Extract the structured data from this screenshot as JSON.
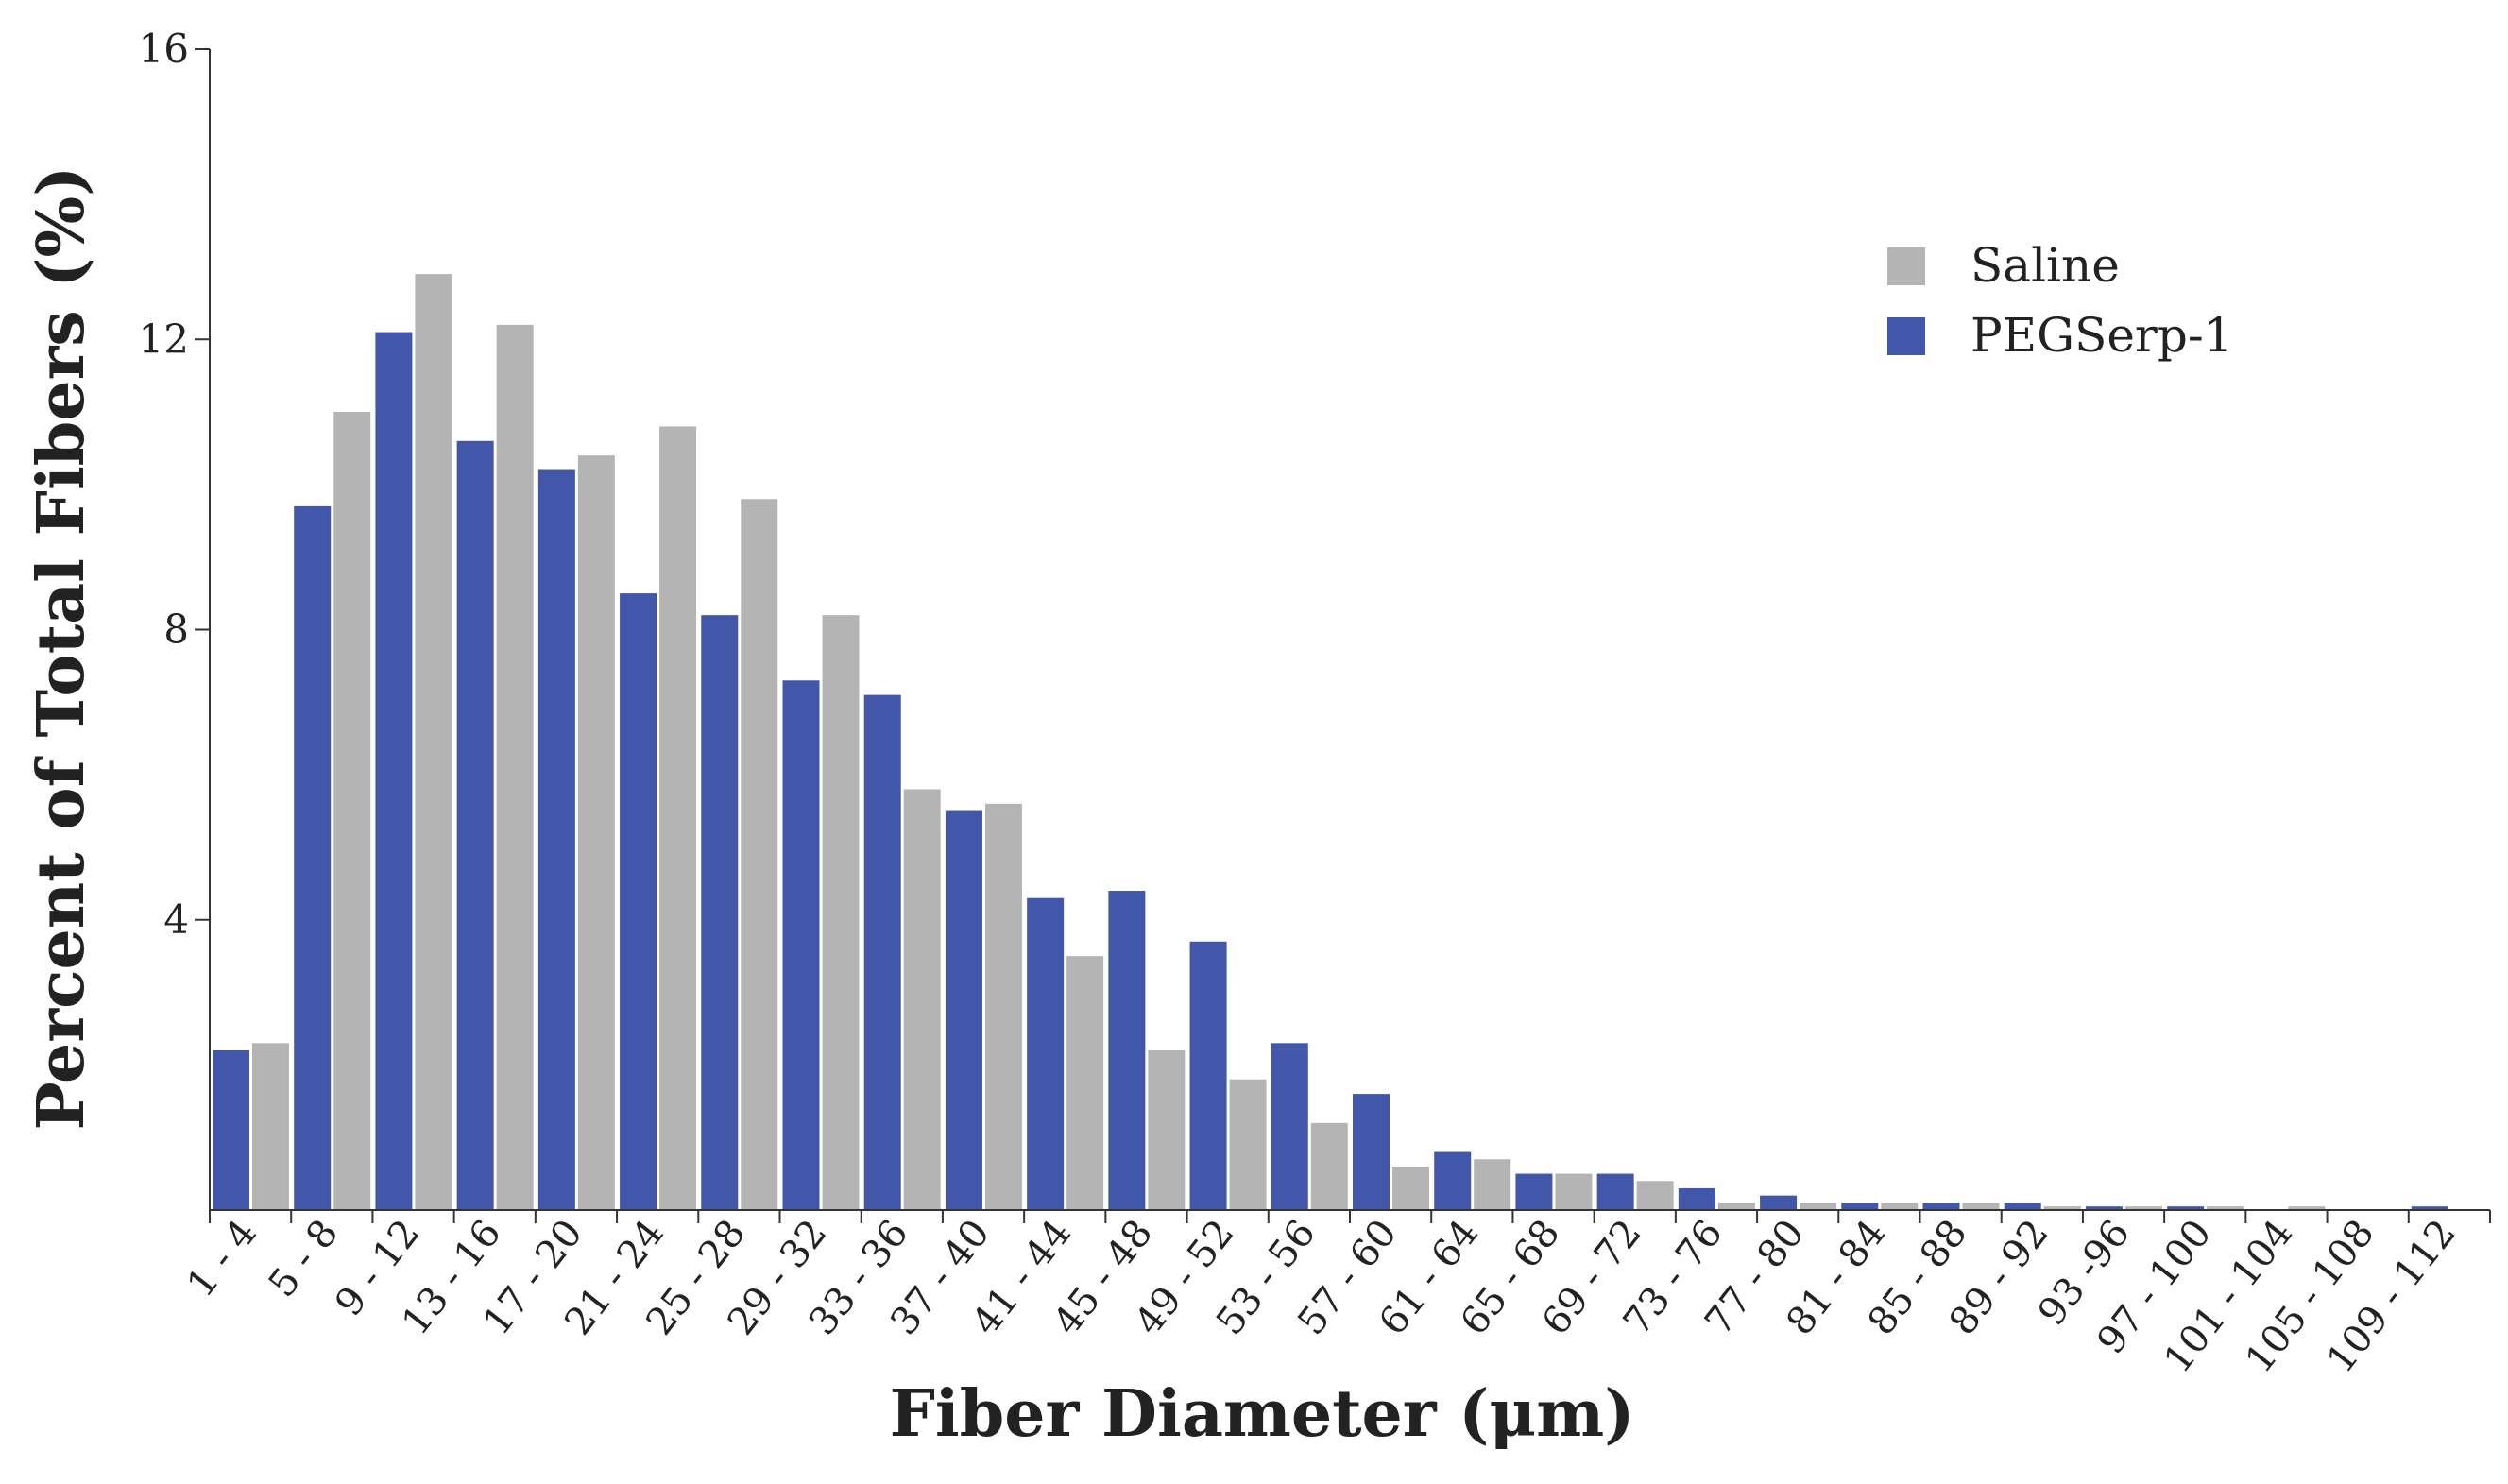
{
  "chart_data": {
    "type": "bar",
    "xlabel": "Fiber Diameter (μm)",
    "ylabel": "Percent of Total Fibers (%)",
    "ylim": [
      0,
      16
    ],
    "yticks": [
      "4",
      "8",
      "12",
      "16"
    ],
    "ytick_values": [
      4,
      8,
      12,
      16
    ],
    "grid": false,
    "legend_position": "top-right",
    "categories": [
      "1 - 4",
      "5 - 8",
      "9 - 12",
      "13 - 16",
      "17 - 20",
      "21 - 24",
      "25 - 28",
      "29 - 32",
      "33 - 36",
      "37 - 40",
      "41 - 44",
      "45 - 48",
      "49 - 52",
      "53 - 56",
      "57 - 60",
      "61 - 64",
      "65 - 68",
      "69 - 72",
      "73 - 76",
      "77 - 80",
      "81 - 84",
      "85 - 88",
      "89 - 92",
      "93 -96",
      "97 - 100",
      "101 - 104",
      "105 - 108",
      "109 - 112"
    ],
    "series": [
      {
        "name": "PEGSerp-1",
        "color": "#4257a9",
        "values": [
          2.2,
          9.7,
          12.1,
          10.6,
          10.2,
          8.5,
          8.2,
          7.3,
          7.1,
          5.5,
          4.3,
          4.4,
          3.7,
          2.3,
          1.6,
          0.8,
          0.5,
          0.5,
          0.3,
          0.2,
          0.1,
          0.1,
          0.1,
          0.05,
          0.05,
          0,
          0,
          0.05
        ]
      },
      {
        "name": "Saline",
        "color": "#b4b4b4",
        "values": [
          2.3,
          11.0,
          12.9,
          12.2,
          10.4,
          10.8,
          9.8,
          8.2,
          5.8,
          5.6,
          3.5,
          2.2,
          1.8,
          1.2,
          0.6,
          0.7,
          0.5,
          0.4,
          0.1,
          0.1,
          0.1,
          0.1,
          0.05,
          0.05,
          0.05,
          0.05,
          0,
          0
        ]
      }
    ],
    "legend_order": [
      "Saline",
      "PEGSerp-1"
    ]
  }
}
